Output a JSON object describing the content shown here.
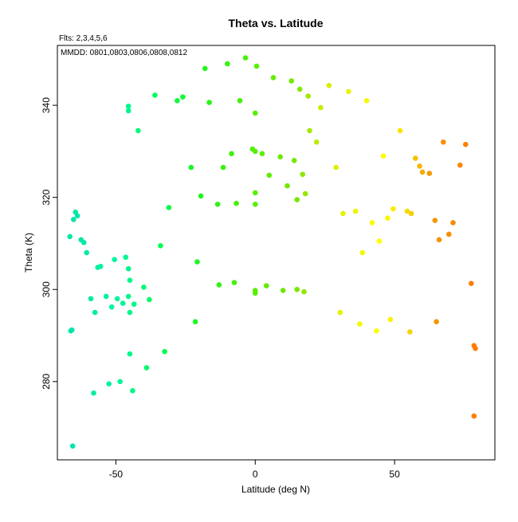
{
  "chart_data": {
    "type": "scatter",
    "title": "Theta vs. Latitude",
    "subtitle": "Flts: 2,3,4,5,6",
    "annotation": "MMDD: 0801,0803,0806,0808,0812",
    "xlabel": "Latitude (deg N)",
    "ylabel": "Theta (K)",
    "xlim": [
      -71,
      86
    ],
    "ylim": [
      263,
      353
    ],
    "xticks": [
      -50,
      0,
      50
    ],
    "yticks": [
      280,
      300,
      320,
      340
    ],
    "grid": false,
    "legend": "none",
    "color_scale": {
      "stops": [
        [
          -65,
          "#00e6a8"
        ],
        [
          -50,
          "#00f5a0"
        ],
        [
          -35,
          "#00ff5a"
        ],
        [
          -20,
          "#20f520"
        ],
        [
          0,
          "#55f000"
        ],
        [
          15,
          "#7ae600"
        ],
        [
          25,
          "#d8ec00"
        ],
        [
          45,
          "#ffff00"
        ],
        [
          55,
          "#f5d800"
        ],
        [
          62,
          "#f39a00"
        ],
        [
          80,
          "#ff7a00"
        ]
      ]
    },
    "points": [
      [
        -65.5,
        266.0
      ],
      [
        -65.8,
        291.2
      ],
      [
        -66.2,
        291.0
      ],
      [
        -66.5,
        311.5
      ],
      [
        -64.5,
        316.8
      ],
      [
        -65.2,
        315.2
      ],
      [
        -63.8,
        316.0
      ],
      [
        -62.5,
        310.8
      ],
      [
        -61.5,
        310.2
      ],
      [
        -60.5,
        308.0
      ],
      [
        -59.0,
        298.0
      ],
      [
        -57.5,
        295.0
      ],
      [
        -58.0,
        277.5
      ],
      [
        -56.5,
        304.8
      ],
      [
        -55.5,
        305.0
      ],
      [
        -53.5,
        298.5
      ],
      [
        -52.5,
        279.5
      ],
      [
        -51.5,
        296.2
      ],
      [
        -50.5,
        306.5
      ],
      [
        -49.5,
        298.0
      ],
      [
        -48.5,
        280.0
      ],
      [
        -47.5,
        297.0
      ],
      [
        -46.5,
        307.0
      ],
      [
        -45.5,
        304.5
      ],
      [
        -45.0,
        302.0
      ],
      [
        -45.5,
        298.5
      ],
      [
        -45.0,
        295.0
      ],
      [
        -45.0,
        286.0
      ],
      [
        -44.0,
        278.0
      ],
      [
        -43.5,
        296.8
      ],
      [
        -45.5,
        339.8
      ],
      [
        -45.5,
        338.8
      ],
      [
        -42.0,
        334.5
      ],
      [
        -40.0,
        300.5
      ],
      [
        -39.0,
        283.0
      ],
      [
        -38.0,
        297.8
      ],
      [
        -36.0,
        342.2
      ],
      [
        -34.0,
        309.5
      ],
      [
        -32.5,
        286.5
      ],
      [
        -31.0,
        317.8
      ],
      [
        -28.0,
        341.0
      ],
      [
        -26.0,
        341.8
      ],
      [
        -23.0,
        326.5
      ],
      [
        -21.5,
        293.0
      ],
      [
        -20.8,
        306.0
      ],
      [
        -19.5,
        320.3
      ],
      [
        -18.0,
        348.0
      ],
      [
        -16.5,
        340.6
      ],
      [
        -13.5,
        318.5
      ],
      [
        -13.0,
        301.0
      ],
      [
        -11.5,
        326.5
      ],
      [
        -10.0,
        349.0
      ],
      [
        -8.5,
        329.5
      ],
      [
        -7.5,
        301.5
      ],
      [
        -6.8,
        318.7
      ],
      [
        -5.5,
        341.0
      ],
      [
        -3.5,
        350.3
      ],
      [
        -1.0,
        330.5
      ],
      [
        0.0,
        338.3
      ],
      [
        0.5,
        348.5
      ],
      [
        0.0,
        330.0
      ],
      [
        0.0,
        321.0
      ],
      [
        0.0,
        318.5
      ],
      [
        0.0,
        299.8
      ],
      [
        0.0,
        299.2
      ],
      [
        2.5,
        329.5
      ],
      [
        4.0,
        300.8
      ],
      [
        5.0,
        324.8
      ],
      [
        6.5,
        346.0
      ],
      [
        9.0,
        328.8
      ],
      [
        10.0,
        299.8
      ],
      [
        11.5,
        322.5
      ],
      [
        13.0,
        345.3
      ],
      [
        14.0,
        328.0
      ],
      [
        15.0,
        319.5
      ],
      [
        15.0,
        300.0
      ],
      [
        16.0,
        343.5
      ],
      [
        17.0,
        325.0
      ],
      [
        17.5,
        299.5
      ],
      [
        18.0,
        320.8
      ],
      [
        19.0,
        342.0
      ],
      [
        19.5,
        334.5
      ],
      [
        22.0,
        332.0
      ],
      [
        23.5,
        339.5
      ],
      [
        26.5,
        344.3
      ],
      [
        29.0,
        326.5
      ],
      [
        30.5,
        295.0
      ],
      [
        31.5,
        316.5
      ],
      [
        33.5,
        343.0
      ],
      [
        36.0,
        317.0
      ],
      [
        37.5,
        292.5
      ],
      [
        38.5,
        308.0
      ],
      [
        40.0,
        341.0
      ],
      [
        42.0,
        314.5
      ],
      [
        43.5,
        291.0
      ],
      [
        44.5,
        310.5
      ],
      [
        46.0,
        329.0
      ],
      [
        47.5,
        315.5
      ],
      [
        48.5,
        293.5
      ],
      [
        49.5,
        317.5
      ],
      [
        52.0,
        334.5
      ],
      [
        54.5,
        317.0
      ],
      [
        55.5,
        290.8
      ],
      [
        56.0,
        316.5
      ],
      [
        57.5,
        328.5
      ],
      [
        59.0,
        326.8
      ],
      [
        60.0,
        325.5
      ],
      [
        62.5,
        325.2
      ],
      [
        64.5,
        315.0
      ],
      [
        65.0,
        293.0
      ],
      [
        66.0,
        310.8
      ],
      [
        67.5,
        332.0
      ],
      [
        69.5,
        312.0
      ],
      [
        71.0,
        314.5
      ],
      [
        73.5,
        327.0
      ],
      [
        75.5,
        331.5
      ],
      [
        77.5,
        301.3
      ],
      [
        78.5,
        287.8
      ],
      [
        79.0,
        287.2
      ],
      [
        78.5,
        272.5
      ]
    ]
  }
}
